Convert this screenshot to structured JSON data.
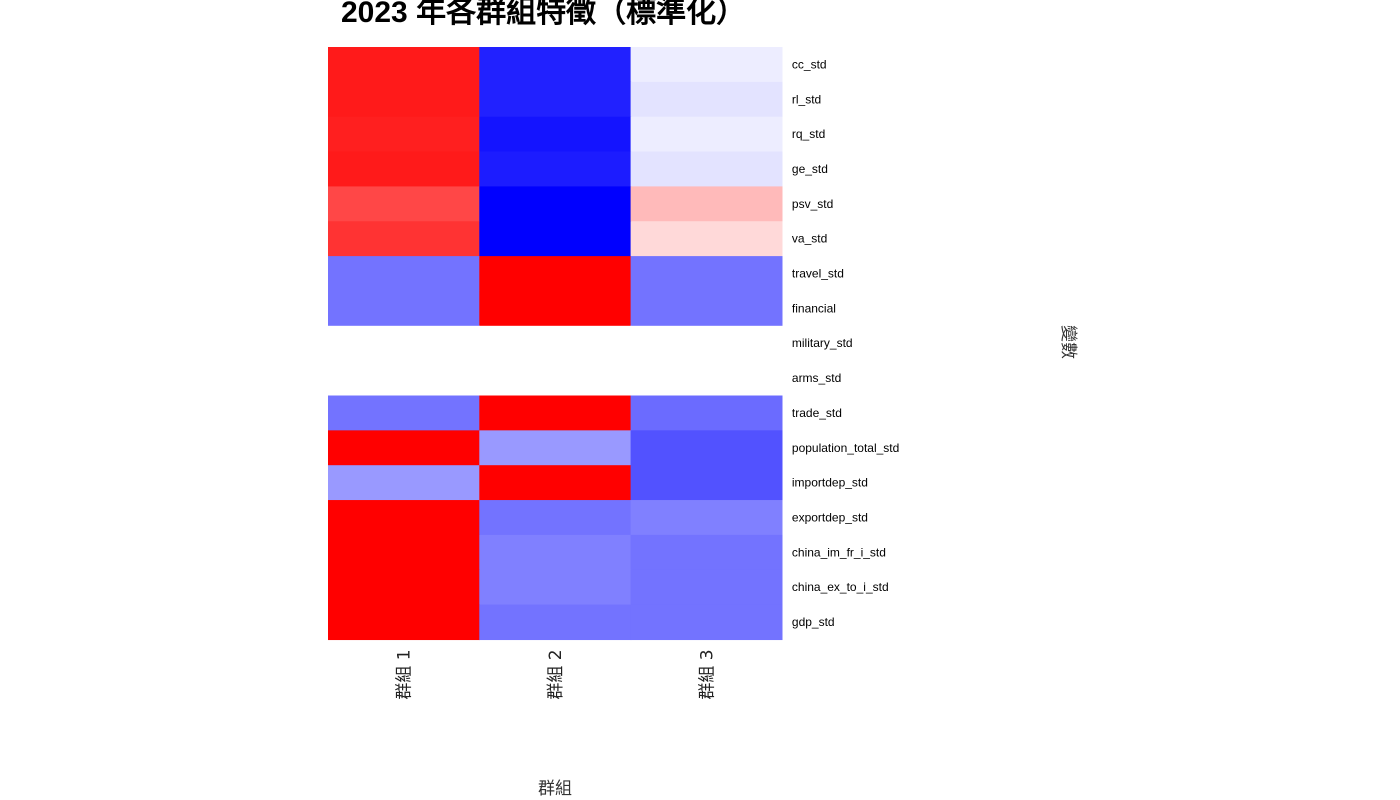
{
  "chart_data": {
    "type": "heatmap",
    "title": "2023 年各群組特徵（標準化）",
    "xlabel": "群組",
    "ylabel": "變數",
    "columns": [
      "群組 1",
      "群組 2",
      "群組 3"
    ],
    "rows": [
      "cc_std",
      "rl_std",
      "rq_std",
      "ge_std",
      "psv_std",
      "va_std",
      "travel_std",
      "financial",
      "military_std",
      "arms_std",
      "trade_std",
      "population_total_std",
      "importdep_std",
      "exportdep_std",
      "china_im_fr_i_std",
      "china_ex_to_i_std",
      "gdp_std"
    ],
    "values": [
      [
        0.9,
        -0.87,
        -0.07
      ],
      [
        0.9,
        -0.87,
        -0.11
      ],
      [
        0.88,
        -0.92,
        -0.07
      ],
      [
        0.9,
        -0.89,
        -0.11
      ],
      [
        0.72,
        -1.0,
        0.27
      ],
      [
        0.8,
        -1.0,
        0.15
      ],
      [
        -0.55,
        1.0,
        -0.55
      ],
      [
        -0.55,
        1.0,
        -0.55
      ],
      [
        0.0,
        0.0,
        0.0
      ],
      [
        0.0,
        0.0,
        0.0
      ],
      [
        -0.55,
        1.0,
        -0.58
      ],
      [
        1.0,
        -0.4,
        -0.68
      ],
      [
        -0.4,
        1.0,
        -0.68
      ],
      [
        1.0,
        -0.55,
        -0.5
      ],
      [
        1.0,
        -0.5,
        -0.55
      ],
      [
        1.0,
        -0.5,
        -0.55
      ],
      [
        1.0,
        -0.55,
        -0.55
      ]
    ],
    "value_range": [
      -1,
      1
    ],
    "colors": {
      "low": "#0000ff",
      "mid": "#ffffff",
      "high": "#ff0000"
    },
    "legend": "none"
  }
}
